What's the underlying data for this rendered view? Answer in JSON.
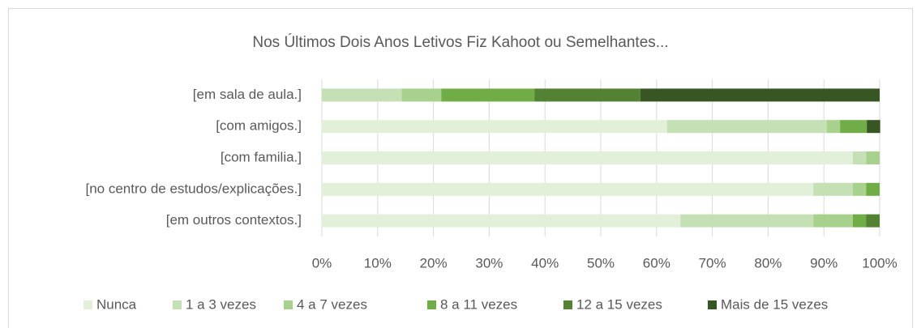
{
  "chart_data": {
    "type": "stacked_bar_horizontal",
    "title": "Nos Últimos Dois Anos Letivos Fiz Kahoot ou Semelhantes...",
    "categories": [
      "[em sala de aula.]",
      "[com amigos.]",
      "[com familia.]",
      "[no centro de estudos/explicações.]",
      "[em outros contextos.]"
    ],
    "series": [
      {
        "name": "Nunca",
        "color": "#e2f0d9",
        "values": [
          0,
          61.9,
          95.2,
          88.1,
          64.3
        ]
      },
      {
        "name": "1 a 3 vezes",
        "color": "#c5e0b4",
        "values": [
          14.3,
          28.6,
          2.4,
          7.1,
          23.8
        ]
      },
      {
        "name": "4 a 7 vezes",
        "color": "#a9d18e",
        "values": [
          7.1,
          2.4,
          2.4,
          2.4,
          7.1
        ]
      },
      {
        "name": "8 a 11 vezes",
        "color": "#70ad47",
        "values": [
          16.7,
          4.8,
          0,
          2.4,
          2.4
        ]
      },
      {
        "name": "12 a 15 vezes",
        "color": "#548235",
        "values": [
          19.0,
          0,
          0,
          0,
          2.4
        ]
      },
      {
        "name": "Mais de 15 vezes",
        "color": "#375623",
        "values": [
          42.9,
          2.4,
          0,
          0,
          0
        ]
      }
    ],
    "xlim": [
      0,
      100
    ],
    "xticks": [
      {
        "value": 0,
        "label": "0%"
      },
      {
        "value": 10,
        "label": "10%"
      },
      {
        "value": 20,
        "label": "20%"
      },
      {
        "value": 30,
        "label": "30%"
      },
      {
        "value": 40,
        "label": "40%"
      },
      {
        "value": 50,
        "label": "50%"
      },
      {
        "value": 60,
        "label": "60%"
      },
      {
        "value": 70,
        "label": "70%"
      },
      {
        "value": 80,
        "label": "80%"
      },
      {
        "value": 90,
        "label": "90%"
      },
      {
        "value": 100,
        "label": "100%"
      }
    ],
    "grid": true,
    "legend": "bottom"
  }
}
